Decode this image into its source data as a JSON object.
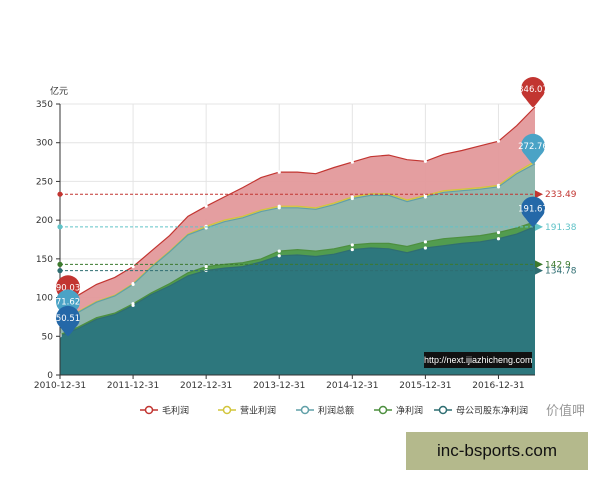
{
  "chart_data": {
    "type": "area",
    "ylabel": "亿元",
    "ylim": [
      0,
      350
    ],
    "yticks": [
      0,
      50,
      100,
      150,
      200,
      250,
      300,
      350
    ],
    "xticks": [
      "2010-12-31",
      "2011-12-31",
      "2012-12-31",
      "2013-12-31",
      "2014-12-31",
      "2015-12-31",
      "2016-12-31"
    ],
    "grid": true,
    "legend_position": "bottom",
    "x": [
      "2010-12-31",
      "2011-03-31",
      "2011-06-30",
      "2011-09-30",
      "2011-12-31",
      "2012-03-31",
      "2012-06-30",
      "2012-09-30",
      "2012-12-31",
      "2013-03-31",
      "2013-06-30",
      "2013-09-30",
      "2013-12-31",
      "2014-03-31",
      "2014-06-30",
      "2014-09-30",
      "2014-12-31",
      "2015-03-31",
      "2015-06-30",
      "2015-09-30",
      "2015-12-31",
      "2016-03-31",
      "2016-06-30",
      "2016-09-30",
      "2016-12-31",
      "2017-03-31",
      "2017-06-30"
    ],
    "series": [
      {
        "name": "毛利润",
        "color": "#c23531",
        "fill": "#e3999b",
        "values": [
          90.03,
          103,
          117,
          126,
          140,
          160,
          180,
          205,
          218,
          230,
          242,
          255,
          262,
          262,
          260,
          268,
          275,
          282,
          284,
          278,
          276,
          285,
          290,
          296,
          302,
          322,
          346.07
        ]
      },
      {
        "name": "营业利润",
        "color": "#d2c53b",
        "fill": "#d7c96a",
        "values": [
          72.5,
          82,
          95,
          103,
          118,
          140,
          160,
          182,
          192,
          200,
          205,
          213,
          218,
          218,
          216,
          222,
          230,
          234,
          234,
          226,
          232,
          238,
          240,
          242,
          245,
          262,
          276
        ]
      },
      {
        "name": "利润总额",
        "color": "#61a0a8",
        "fill": "#8cb6b2",
        "values": [
          71.62,
          81,
          94,
          102,
          117,
          139,
          159,
          181,
          190,
          198,
          203,
          211,
          216,
          216,
          214,
          220,
          228,
          232,
          232,
          224,
          230,
          236,
          238,
          240,
          243,
          260,
          272.76
        ]
      },
      {
        "name": "净利润",
        "color": "#4d8f3f",
        "fill": "#4f9a4a",
        "values": [
          52,
          62,
          74,
          80,
          92,
          106,
          118,
          132,
          140,
          143,
          145,
          150,
          160,
          162,
          160,
          163,
          168,
          170,
          170,
          166,
          172,
          176,
          178,
          180,
          184,
          190,
          198
        ]
      },
      {
        "name": "母公司股东净利润",
        "color": "#2f6e72",
        "fill": "#2b7580",
        "values": [
          50.51,
          60,
          72,
          78,
          90,
          104,
          115,
          128,
          135,
          138,
          140,
          146,
          154,
          155,
          153,
          156,
          162,
          164,
          163,
          158,
          164,
          167,
          170,
          172,
          176,
          182,
          191.67
        ]
      }
    ],
    "annotations": {
      "max_pins": [
        {
          "series": "毛利润",
          "label": "346.07",
          "color": "#c23531"
        },
        {
          "series": "利润总额",
          "label": "272.76",
          "color": "#4aa3c6"
        },
        {
          "series": "母公司股东净利润",
          "label": "191.67",
          "color": "#2468a8"
        }
      ],
      "min_pins": [
        {
          "series": "毛利润",
          "label": "90.03",
          "color": "#c23531"
        },
        {
          "series": "利润总额",
          "label": "71.62",
          "color": "#4aa3c6"
        },
        {
          "series": "母公司股东净利润",
          "label": "50.51",
          "color": "#2468a8"
        }
      ],
      "mark_lines": [
        {
          "value": 233.49,
          "label": "233.49",
          "color": "#c23531"
        },
        {
          "value": 191.38,
          "label": "191.38",
          "color": "#61c3c8"
        },
        {
          "value": 142.9,
          "label": "142.9",
          "color": "#3d7a2e"
        },
        {
          "value": 134.78,
          "label": "134.78",
          "color": "#2f6e72"
        }
      ]
    }
  },
  "overlay_url": "http://next.ijiazhicheng.com",
  "watermark": "价值呷",
  "promo": "inc-bsports.com"
}
